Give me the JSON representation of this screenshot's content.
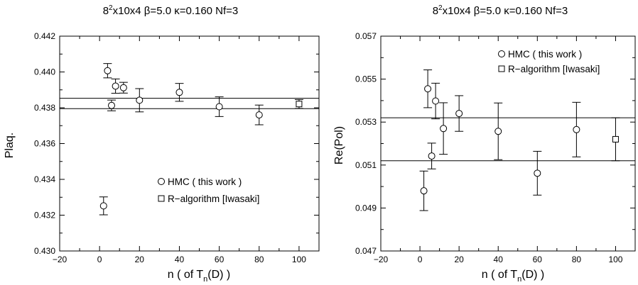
{
  "chart_data": [
    {
      "type": "scatter",
      "title_parts": [
        "8",
        "2",
        "x10x4  β=5.0  κ=0.160  Nf=3"
      ],
      "xlabel_parts": [
        "n (  of T",
        "n",
        "(D) )"
      ],
      "ylabel": "Plaq.",
      "xlim": [
        -20,
        110
      ],
      "ylim": [
        0.43,
        0.442
      ],
      "xticks": [
        "−20",
        "0",
        "20",
        "40",
        "60",
        "80",
        "100"
      ],
      "yticks": [
        "0.430",
        "0.432",
        "0.434",
        "0.436",
        "0.438",
        "0.440",
        "0.442"
      ],
      "legend_position": "lower-center",
      "series": [
        {
          "name": "HMC  ( this work )",
          "marker": "circle",
          "points": [
            {
              "x": 2,
              "y": 0.43252,
              "err": 0.0005
            },
            {
              "x": 4,
              "y": 0.44007,
              "err": 0.0004
            },
            {
              "x": 6,
              "y": 0.43813,
              "err": 0.0003
            },
            {
              "x": 8,
              "y": 0.43921,
              "err": 0.0004
            },
            {
              "x": 12,
              "y": 0.43912,
              "err": 0.0003
            },
            {
              "x": 20,
              "y": 0.43842,
              "err": 0.00065
            },
            {
              "x": 40,
              "y": 0.43886,
              "err": 0.0005
            },
            {
              "x": 60,
              "y": 0.43806,
              "err": 0.00055
            },
            {
              "x": 80,
              "y": 0.4376,
              "err": 0.00055
            }
          ]
        },
        {
          "name": "R−algorithm [Iwasaki]",
          "marker": "square",
          "points": [
            {
              "x": 100,
              "y": 0.43821,
              "err": 0.00025
            }
          ]
        }
      ],
      "hlines": [
        0.43853,
        0.43795
      ]
    },
    {
      "type": "scatter",
      "title_parts": [
        "8",
        "2",
        "x10x4  β=5.0  κ=0.160  Nf=3"
      ],
      "xlabel_parts": [
        "n (  of T",
        "n",
        "(D) )"
      ],
      "ylabel": "Re(Pol)",
      "xlim": [
        -20,
        110
      ],
      "ylim": [
        0.047,
        0.057
      ],
      "xticks": [
        "−20",
        "0",
        "20",
        "40",
        "60",
        "80",
        "100"
      ],
      "yticks": [
        "0.047",
        "0.049",
        "0.051",
        "0.053",
        "0.055",
        "0.057"
      ],
      "legend_position": "top-right",
      "series": [
        {
          "name": "HMC  ( this work )",
          "marker": "circle",
          "points": [
            {
              "x": 2,
              "y": 0.0498,
              "err": 0.00092
            },
            {
              "x": 4,
              "y": 0.05455,
              "err": 0.00088
            },
            {
              "x": 6,
              "y": 0.05142,
              "err": 0.0006
            },
            {
              "x": 8,
              "y": 0.05398,
              "err": 0.00083
            },
            {
              "x": 12,
              "y": 0.0527,
              "err": 0.0012
            },
            {
              "x": 20,
              "y": 0.0534,
              "err": 0.00083
            },
            {
              "x": 40,
              "y": 0.05257,
              "err": 0.00132
            },
            {
              "x": 60,
              "y": 0.05062,
              "err": 0.00102
            },
            {
              "x": 80,
              "y": 0.05265,
              "err": 0.00127
            }
          ]
        },
        {
          "name": "R−algorithm [Iwasaki]",
          "marker": "square",
          "points": [
            {
              "x": 100,
              "y": 0.0522,
              "err": 0.001
            }
          ]
        }
      ],
      "hlines": [
        0.0532,
        0.0512
      ]
    }
  ]
}
